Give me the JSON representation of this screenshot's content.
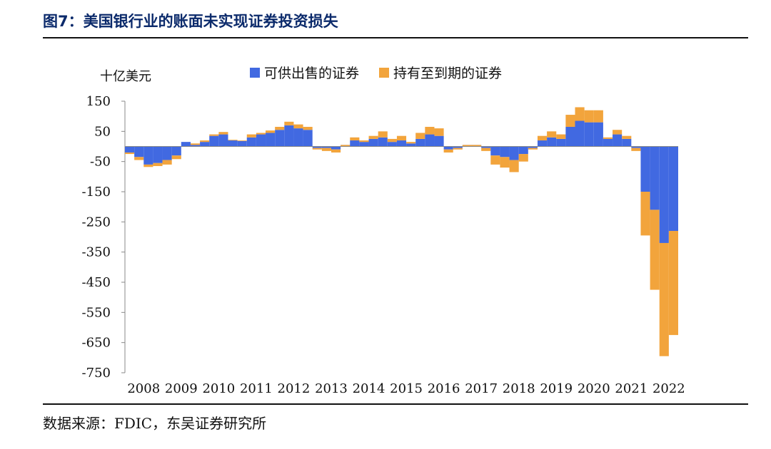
{
  "header": {
    "title": "图7：美国银行业的账面未实现证券投资损失"
  },
  "footer": {
    "source": "数据来源：FDIC，东吴证券研究所"
  },
  "chart_data": {
    "type": "bar",
    "stacked": true,
    "unit": "十亿美元",
    "ylim": [
      -750,
      150
    ],
    "yticks": [
      150,
      50,
      -50,
      -150,
      -250,
      -350,
      -450,
      -550,
      -650,
      -750
    ],
    "xtick_labels": [
      "2008",
      "2009",
      "2010",
      "2011",
      "2012",
      "2013",
      "2014",
      "2015",
      "2016",
      "2017",
      "2018",
      "2019",
      "2020",
      "2021",
      "2022"
    ],
    "quarters_per_year": 4,
    "colors": {
      "afs": "#4169E1",
      "htm": "#F2A43C"
    },
    "series": [
      {
        "name": "可供出售的证券",
        "key": "afs",
        "values": [
          -20,
          -35,
          -60,
          -55,
          -45,
          -30,
          15,
          5,
          15,
          35,
          40,
          20,
          18,
          30,
          40,
          45,
          55,
          70,
          60,
          55,
          -5,
          -5,
          -10,
          5,
          20,
          15,
          25,
          30,
          15,
          20,
          10,
          25,
          40,
          35,
          -10,
          -5,
          5,
          5,
          -5,
          -30,
          -35,
          -45,
          -25,
          -5,
          20,
          30,
          25,
          65,
          85,
          80,
          80,
          25,
          40,
          25,
          -5,
          -150,
          -210,
          -320,
          -280
        ]
      },
      {
        "name": "持有至到期的证券",
        "key": "htm",
        "values": [
          -5,
          -10,
          -8,
          -10,
          -15,
          -12,
          0,
          5,
          5,
          5,
          8,
          2,
          2,
          10,
          5,
          8,
          10,
          12,
          13,
          10,
          -5,
          -10,
          -10,
          -5,
          10,
          5,
          10,
          20,
          10,
          15,
          5,
          20,
          25,
          25,
          -10,
          -5,
          -5,
          -5,
          -10,
          -30,
          -35,
          -40,
          -25,
          -5,
          15,
          20,
          15,
          40,
          45,
          40,
          40,
          5,
          15,
          10,
          -10,
          -145,
          -265,
          -375,
          -345
        ]
      }
    ]
  }
}
